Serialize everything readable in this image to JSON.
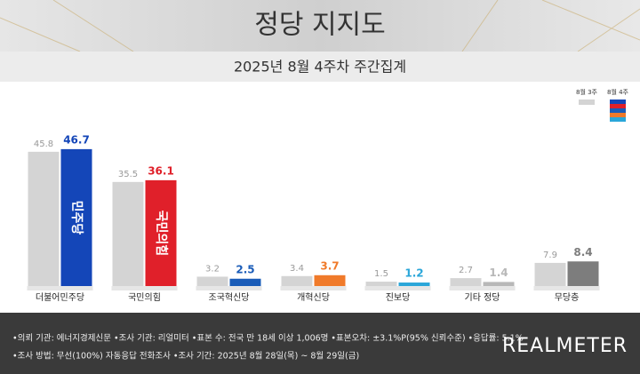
{
  "chart_data": {
    "type": "bar",
    "title": "정당 지지도",
    "subtitle": "2025년 8월 4주차 주간집계",
    "categories": [
      "더불어민주당",
      "국민의힘",
      "조국혁신당",
      "개혁신당",
      "진보당",
      "기타 정당",
      "무당층"
    ],
    "series": [
      {
        "name": "8월 3주",
        "color": "#d4d4d4",
        "label_color": "#999999",
        "values": [
          45.8,
          35.5,
          3.2,
          3.4,
          1.5,
          2.7,
          7.9
        ]
      },
      {
        "name": "8월 4주",
        "colors": [
          "#1446b8",
          "#e0202a",
          "#1a5cb8",
          "#f07a2a",
          "#2aa6d9",
          "#b8b8b8",
          "#7d7d7d"
        ],
        "values": [
          46.7,
          36.1,
          2.5,
          3.7,
          1.2,
          1.4,
          8.4
        ],
        "bar_labels": [
          "민주당",
          "국민의힘",
          null,
          null,
          null,
          null,
          null
        ]
      }
    ],
    "ylim": [
      0,
      50
    ],
    "footer": {
      "lines": [
        "•의뢰 기관: 에너지경제신문  •조사 기관: 리얼미터  •표본 수: 전국 만 18세 이상 1,006명  •표본오차: ±3.1%P(95% 신뢰수준)  •응답률: 5.1%",
        "•조사 방법: 무선(100%) 자동응답 전화조사  •조사 기간: 2025년 8월 28일(목) ~ 8월 29일(금)"
      ],
      "logo": "REALMETER"
    }
  }
}
